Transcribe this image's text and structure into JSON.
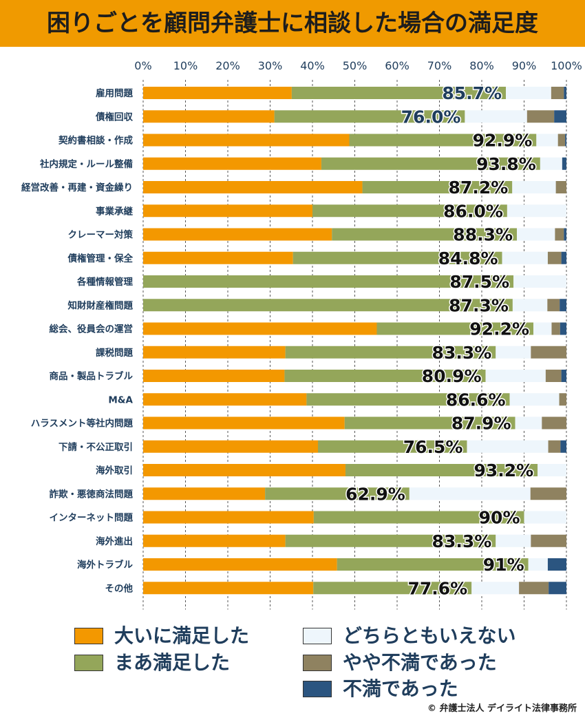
{
  "title": "困りごとを顧問弁護士に相談した場合の満足度",
  "copyright": "© 弁護士法人 デイライト法律事務所",
  "legend": [
    {
      "label": "大いに満足した",
      "color": "#f39800"
    },
    {
      "label": "どちらともいえない",
      "color": "#eef6fc"
    },
    {
      "label": "まあ満足した",
      "color": "#94a65a"
    },
    {
      "label": "やや不満であった",
      "color": "#8f8260"
    },
    {
      "label": "不満であった",
      "color": "#2b5580"
    }
  ],
  "chart_data": {
    "type": "bar",
    "orientation": "horizontal",
    "stacked": true,
    "xlim": [
      0,
      100
    ],
    "x_ticks": [
      "0%",
      "10%",
      "20%",
      "30%",
      "40%",
      "50%",
      "60%",
      "70%",
      "80%",
      "90%",
      "100%"
    ],
    "grid": true,
    "categories": [
      "雇用問題",
      "債権回収",
      "契約書相談・作成",
      "社内規定・ルール整備",
      "経営改善・再建・資金繰り",
      "事業承継",
      "クレーマー対策",
      "債権管理・保全",
      "各種情報管理",
      "知財財産権問題",
      "総会、役員会の運営",
      "課税問題",
      "商品・製品トラブル",
      "M&A",
      "ハラスメント等社内問題",
      "下請・不公正取引",
      "海外取引",
      "詐欺・悪徳商法問題",
      "インターネット問題",
      "海外進出",
      "海外トラブル",
      "その他"
    ],
    "series": [
      {
        "name": "大いに満足した",
        "color": "#f39800",
        "values": [
          35.1,
          31.0,
          48.7,
          42.1,
          51.8,
          40.0,
          44.6,
          35.4,
          0,
          0,
          55.2,
          33.6,
          33.4,
          38.6,
          47.6,
          41.3,
          47.8,
          28.8,
          40.3,
          33.6,
          45.8,
          40.2
        ]
      },
      {
        "name": "まあ満足した",
        "color": "#94a65a",
        "values": [
          50.6,
          45.0,
          44.2,
          51.7,
          35.4,
          46.0,
          43.7,
          49.4,
          87.5,
          87.3,
          37.0,
          49.7,
          47.5,
          48.0,
          40.3,
          35.2,
          45.4,
          34.1,
          49.7,
          49.7,
          45.2,
          37.4
        ]
      },
      {
        "name": "どちらともいえない",
        "color": "#eef6fc",
        "values": [
          10.7,
          14.7,
          5.1,
          5.2,
          10.3,
          14.0,
          9.0,
          10.8,
          12.5,
          8.2,
          4.3,
          8.3,
          14.2,
          11.7,
          6.3,
          19.2,
          6.8,
          28.6,
          10.0,
          8.3,
          4.6,
          11.2
        ]
      },
      {
        "name": "やや不満であった",
        "color": "#8f8260",
        "values": [
          3.0,
          6.4,
          1.7,
          0,
          2.5,
          0,
          2.1,
          3.2,
          0,
          2.9,
          2.0,
          8.4,
          3.7,
          1.7,
          5.8,
          2.9,
          0,
          8.5,
          0,
          8.4,
          0,
          7.0
        ]
      },
      {
        "name": "不満であった",
        "color": "#2b5580",
        "values": [
          0.6,
          2.9,
          0.3,
          1.0,
          0,
          0,
          0.6,
          1.2,
          0,
          1.6,
          1.5,
          0,
          1.2,
          0,
          0,
          1.4,
          0,
          0,
          0,
          0,
          4.4,
          4.2
        ]
      }
    ],
    "satisfaction_labels": [
      "85.7%",
      "76.0%",
      "92.9%",
      "93.8%",
      "87.2%",
      "86.0%",
      "88.3%",
      "84.8%",
      "87.5%",
      "87.3%",
      "92.2%",
      "83.3%",
      "80.9%",
      "86.6%",
      "87.9%",
      "76.5%",
      "93.2%",
      "62.9%",
      "90%",
      "83.3%",
      "91%",
      "77.6%"
    ],
    "highlight_label_color": "#1f3d5c",
    "highlighted_rows": [
      0,
      1
    ]
  }
}
